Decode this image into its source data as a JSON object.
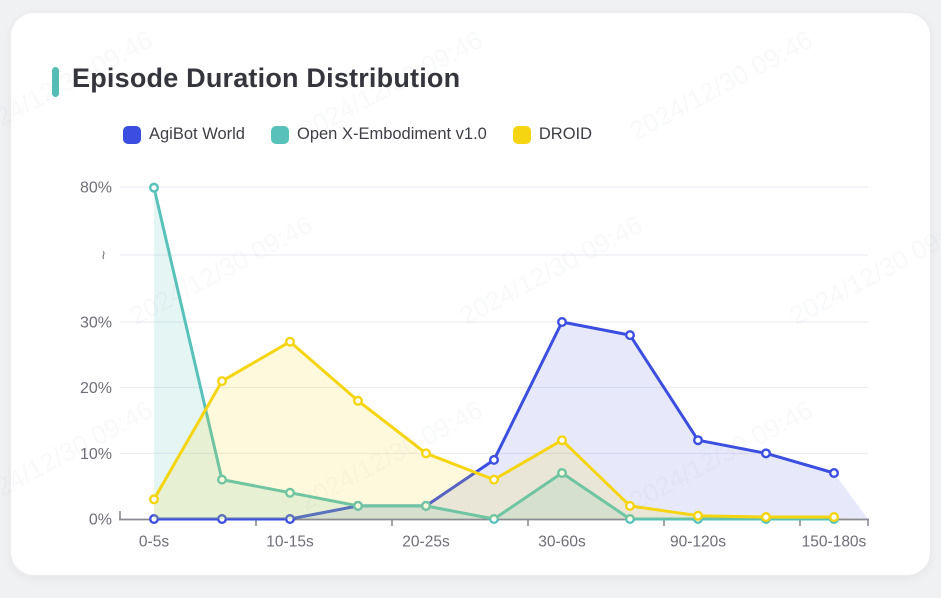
{
  "title": {
    "text": "Episode Duration Distribution",
    "accent_color": "#54bdb6"
  },
  "watermark": {
    "text": "2024/12/30 09:46"
  },
  "colors": {
    "axis_line": "#8a8a92",
    "gridline": "#e9eaf0",
    "tick_label": "#6e6e78"
  },
  "chart_data": {
    "type": "line",
    "categories": [
      "0-5s",
      "",
      "10-15s",
      "",
      "20-25s",
      "",
      "30-60s",
      "",
      "90-120s",
      "",
      "150-180s"
    ],
    "x_tick_labels": [
      "0-5s",
      "10-15s",
      "20-25s",
      "30-60s",
      "90-120s",
      "150-180s"
    ],
    "y_tick_labels": [
      "0%",
      "10%",
      "20%",
      "30%",
      "~",
      "80%"
    ],
    "y_axis": {
      "ticks": [
        0,
        10,
        20,
        30
      ],
      "break_marker": "~",
      "top_value": 80,
      "unit": "%"
    },
    "grid": true,
    "legend_position": "top",
    "series": [
      {
        "name": "AgiBot World",
        "color": "#3b4ee0",
        "values": [
          0,
          0,
          0,
          2,
          2,
          9,
          30,
          28,
          12,
          10,
          7
        ]
      },
      {
        "name": "Open X-Embodiment v1.0",
        "color": "#58c2ba",
        "values": [
          79.6,
          6,
          4,
          2,
          2,
          0,
          7,
          0,
          0,
          0,
          0
        ]
      },
      {
        "name": "DROID",
        "color": "#f5d411",
        "values": [
          3,
          21,
          27,
          18,
          10,
          6,
          12,
          2,
          0.5,
          0.3,
          0.3
        ]
      }
    ]
  }
}
